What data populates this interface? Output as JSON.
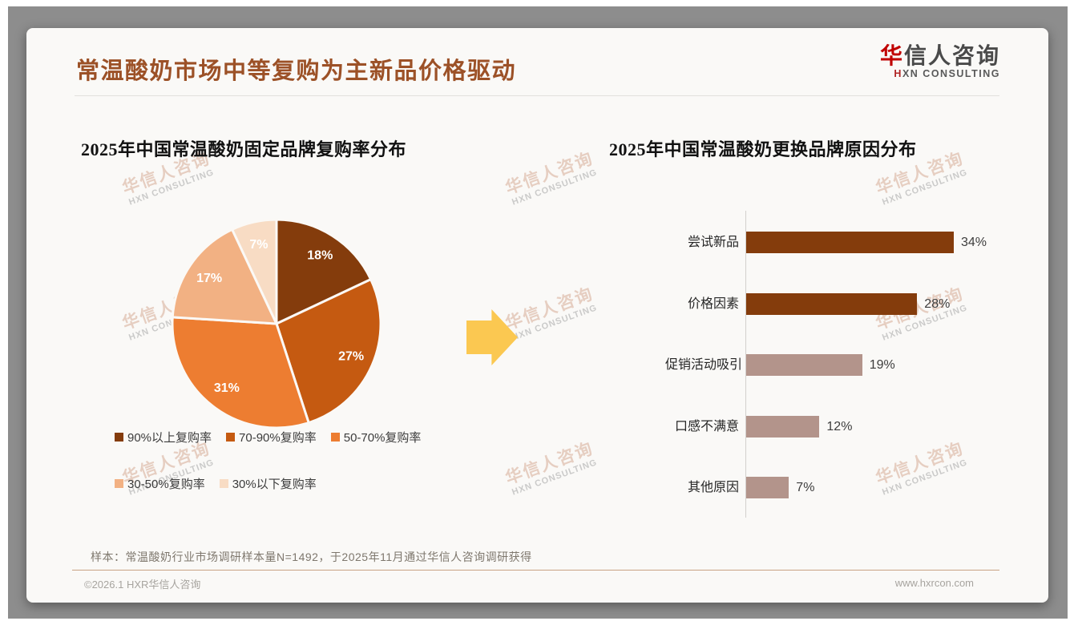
{
  "header": {
    "title": "常温酸奶市场中等复购为主新品价格驱动",
    "logo": {
      "cn_accent": "华",
      "cn_rest": "信人咨询",
      "en_accent": "H",
      "en_rest": "XN CONSULTING"
    }
  },
  "colors": {
    "title_accent": "#9c5127",
    "logo_red": "#c00000",
    "arrow": "#fbc851",
    "axis": "#d3d0cd",
    "footer_rule": "#c9a384"
  },
  "watermark": {
    "line1": "华信人咨询",
    "line2": "HXN CONSULTING"
  },
  "chart_data": [
    {
      "type": "pie",
      "title": "2025年中国常温酸奶固定品牌复购率分布",
      "labels": [
        "90%以上复购率",
        "70-90%复购率",
        "50-70%复购率",
        "30-50%复购率",
        "30%以下复购率"
      ],
      "values": [
        18,
        27,
        31,
        17,
        7
      ],
      "data_labels": [
        "18%",
        "27%",
        "31%",
        "17%",
        "7%"
      ],
      "colors": [
        "#843C0C",
        "#C55A11",
        "#ED7D31",
        "#F2B183",
        "#F8DCC4"
      ],
      "data_label_color": "#FFFFFF",
      "start_angle": "top",
      "direction": "clockwise",
      "legend_rows": [
        [
          0,
          1,
          2
        ],
        [
          3,
          4
        ]
      ],
      "legend_position": "bottom"
    },
    {
      "type": "bar",
      "orientation": "horizontal",
      "title": "2025年中国常温酸奶更换品牌原因分布",
      "categories": [
        "尝试新品",
        "价格因素",
        "促销活动吸引",
        "口感不满意",
        "其他原因"
      ],
      "values": [
        34,
        28,
        19,
        12,
        7
      ],
      "value_labels": [
        "34%",
        "28%",
        "19%",
        "12%",
        "7%"
      ],
      "bar_colors": [
        "#843C0C",
        "#843C0C",
        "#B3948B",
        "#B3948B",
        "#B3948B"
      ],
      "xlim": [
        0,
        40
      ],
      "grid": false,
      "legend": "none"
    }
  ],
  "footer": {
    "note": "样本：常温酸奶行业市场调研样本量N=1492，于2025年11月通过华信人咨询调研获得",
    "copyright": "©2026.1 HXR华信人咨询",
    "website": "www.hxrcon.com"
  }
}
